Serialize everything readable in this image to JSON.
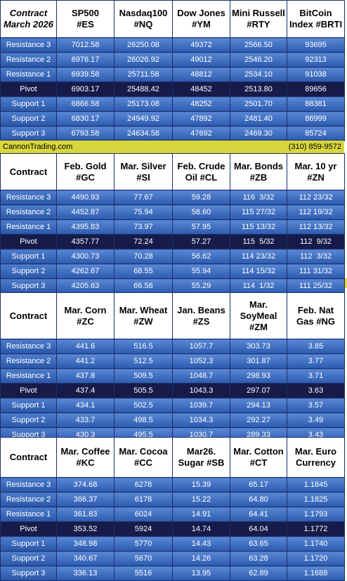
{
  "banner": {
    "site": "CannonTrading.com",
    "phone": "(310) 859-9572"
  },
  "row_labels": [
    "Resistance 3",
    "Resistance 2",
    "Resistance 1",
    "Pivot",
    "Support 1",
    "Support 2",
    "Support 3"
  ],
  "tables": [
    {
      "header": [
        "Contract\nMarch 2026",
        "SP500\n#ES",
        "Nasdaq100\n#NQ",
        "Dow Jones\n#YM",
        "Mini Russell\n#RTY",
        "BitCoin\nIndex #BRTI"
      ],
      "rows": [
        [
          "7012.58",
          "26250.08",
          "49372",
          "2566.50",
          "93695"
        ],
        [
          "6976.17",
          "26026.92",
          "49012",
          "2546.20",
          "92313"
        ],
        [
          "6939.58",
          "25711.58",
          "48812",
          "2534.10",
          "91038"
        ],
        [
          "6903.17",
          "25488.42",
          "48452",
          "2513.80",
          "89656"
        ],
        [
          "6866.58",
          "25173.08",
          "48252",
          "2501.70",
          "88381"
        ],
        [
          "6830.17",
          "24949.92",
          "47892",
          "2481.40",
          "86999"
        ],
        [
          "6793.58",
          "24634.58",
          "47692",
          "2469.30",
          "85724"
        ]
      ]
    },
    {
      "header": [
        "Contract",
        "Feb. Gold\n#GC",
        "Mar. Silver\n#SI",
        "Feb. Crude\nOil #CL",
        "Mar. Bonds\n#ZB",
        "Mar. 10 yr\n#ZN"
      ],
      "rows": [
        [
          "4490.93",
          "77.67",
          "59.28",
          "116  3/32",
          "112 23/32"
        ],
        [
          "4452.87",
          "75.94",
          "58.60",
          "115 27/32",
          "112 19/32"
        ],
        [
          "4395.83",
          "73.97",
          "57.95",
          "115 13/32",
          "112 13/32"
        ],
        [
          "4357.77",
          "72.24",
          "57.27",
          "115  5/32",
          "112  9/32"
        ],
        [
          "4300.73",
          "70.28",
          "56.62",
          "114 23/32",
          "112  3/32"
        ],
        [
          "4262.67",
          "68.55",
          "55.94",
          "114 15/32",
          "111 31/32"
        ],
        [
          "4205.63",
          "66.58",
          "55.29",
          "114  1/32",
          "111 25/32"
        ]
      ]
    },
    {
      "header": [
        "Contract",
        "Mar. Corn\n#ZC",
        "Mar.  Wheat\n#ZW",
        "Jan. Beans\n#ZS",
        "Mar.\nSoyMeal\n#ZM",
        "Feb. Nat\nGas #NG"
      ],
      "rows": [
        [
          "441.6",
          "516.5",
          "1057.7",
          "303.73",
          "3.85"
        ],
        [
          "441.2",
          "512.5",
          "1052.3",
          "301.87",
          "3.77"
        ],
        [
          "437.8",
          "509.5",
          "1048.7",
          "298.93",
          "3.71"
        ],
        [
          "437.4",
          "505.5",
          "1043.3",
          "297.07",
          "3.63"
        ],
        [
          "434.1",
          "502.5",
          "1039.7",
          "294.13",
          "3.57"
        ],
        [
          "433.7",
          "498.5",
          "1034.3",
          "292.27",
          "3.49"
        ],
        [
          "430.3",
          "495.5",
          "1030.7",
          "289.33",
          "3.43"
        ]
      ]
    },
    {
      "header": [
        "Contract",
        "Mar. Coffee\n#KC",
        "Mar. Cocoa\n#CC",
        "Mar26.\nSugar #SB",
        "Mar. Cotton\n#CT",
        "Mar. Euro\nCurrency"
      ],
      "rows": [
        [
          "374.68",
          "6278",
          "15.39",
          "65.17",
          "1.1845"
        ],
        [
          "366.37",
          "6178",
          "15.22",
          "64.80",
          "1.1825"
        ],
        [
          "361.83",
          "6024",
          "14.91",
          "64.41",
          "1.1793"
        ],
        [
          "353.52",
          "5924",
          "14.74",
          "64.04",
          "1.1772"
        ],
        [
          "348.98",
          "5770",
          "14.43",
          "63.65",
          "1.1740"
        ],
        [
          "340.67",
          "5670",
          "14.26",
          "63.28",
          "1.1720"
        ],
        [
          "336.13",
          "5516",
          "13.95",
          "62.89",
          "1.1688"
        ]
      ]
    }
  ]
}
